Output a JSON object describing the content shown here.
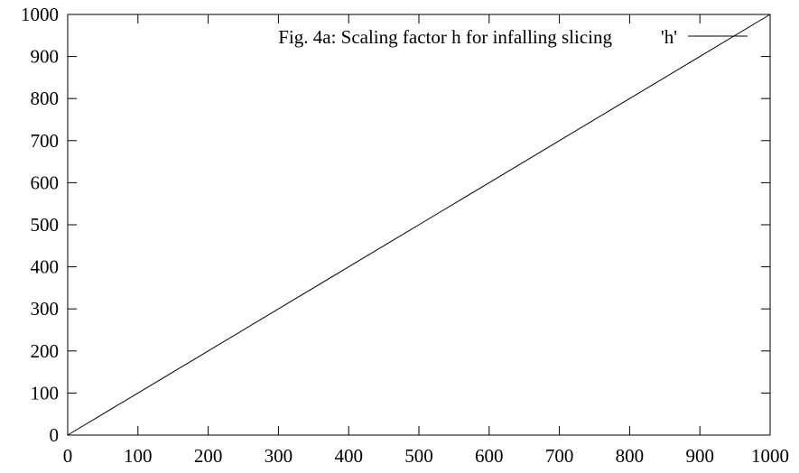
{
  "chart_data": {
    "type": "line",
    "title": "Fig. 4a: Scaling factor h for infalling slicing",
    "xlabel": "",
    "ylabel": "",
    "xlim": [
      0,
      1000
    ],
    "ylim": [
      0,
      1000
    ],
    "x_ticks": [
      0,
      100,
      200,
      300,
      400,
      500,
      600,
      700,
      800,
      900,
      1000
    ],
    "y_ticks": [
      0,
      100,
      200,
      300,
      400,
      500,
      600,
      700,
      800,
      900,
      1000
    ],
    "grid": false,
    "legend_position": "top-right",
    "series": [
      {
        "name": "'h'",
        "x": [
          0,
          100,
          200,
          300,
          400,
          500,
          600,
          700,
          800,
          900,
          1000
        ],
        "y": [
          0,
          100,
          200,
          300,
          400,
          500,
          600,
          700,
          800,
          900,
          1000
        ]
      }
    ]
  }
}
